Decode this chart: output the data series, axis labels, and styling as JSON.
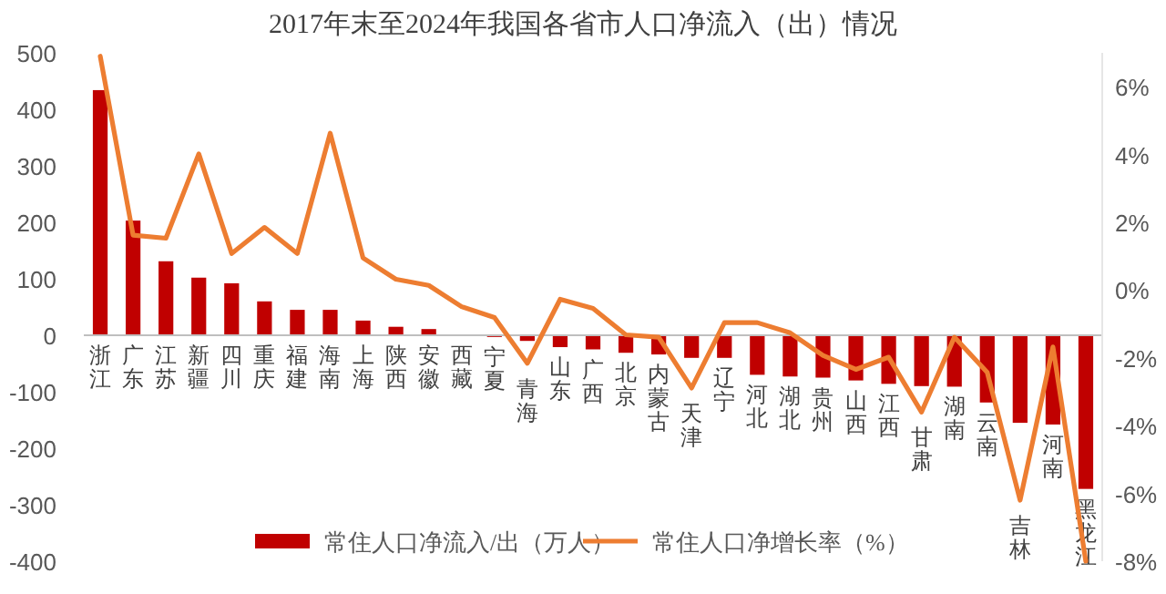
{
  "chart_data": {
    "type": "bar",
    "title": "2017年末至2024年我国各省市人口净流入（出）情况",
    "categories": [
      "浙江",
      "广东",
      "江苏",
      "新疆",
      "四川",
      "重庆",
      "福建",
      "海南",
      "上海",
      "陕西",
      "安徽",
      "西藏",
      "宁夏",
      "青海",
      "山东",
      "广西",
      "北京",
      "内蒙古",
      "天津",
      "辽宁",
      "河北",
      "湖北",
      "贵州",
      "山西",
      "江西",
      "甘肃",
      "湖南",
      "云南",
      "吉林",
      "河南",
      "黑龙江"
    ],
    "series": [
      {
        "name": "常住人口净流入/出（万人）",
        "color": "#c00000",
        "values": [
          434,
          203,
          131,
          102,
          92,
          60,
          45,
          45,
          26,
          15,
          11,
          null,
          -3,
          -10,
          -21,
          -25,
          -31,
          -34,
          -40,
          -40,
          -70,
          -73,
          -75,
          -80,
          -86,
          -90,
          -91,
          -119,
          -155,
          -158,
          -272
        ]
      },
      {
        "name": "常住人口净增长率（%）",
        "type": "line",
        "axis": "y2",
        "color": "#ed7d31",
        "values": [
          6.9,
          1.62,
          1.53,
          4.02,
          1.08,
          1.85,
          1.08,
          4.63,
          0.95,
          0.32,
          0.14,
          -0.49,
          -0.81,
          -2.16,
          -0.27,
          -0.54,
          -1.32,
          -1.39,
          -2.89,
          -0.96,
          -0.96,
          -1.26,
          -1.93,
          -2.34,
          -1.98,
          -3.6,
          -1.39,
          -2.43,
          -6.2,
          -1.68,
          -8.0
        ]
      }
    ],
    "ylim": [
      -400,
      500
    ],
    "yticks": [
      -400,
      -300,
      -200,
      -100,
      0,
      100,
      200,
      300,
      400,
      500
    ],
    "y2lim": [
      -8,
      7
    ],
    "y2ticks": [
      {
        "value": -8,
        "label": "-8%"
      },
      {
        "value": -6,
        "label": "-6%"
      },
      {
        "value": -4,
        "label": "-4%"
      },
      {
        "value": -2,
        "label": "-2%"
      },
      {
        "value": 0,
        "label": "0%"
      },
      {
        "value": 2,
        "label": "2%"
      },
      {
        "value": 4,
        "label": "4%"
      },
      {
        "value": 6,
        "label": "6%"
      }
    ],
    "legend": "bottom"
  }
}
